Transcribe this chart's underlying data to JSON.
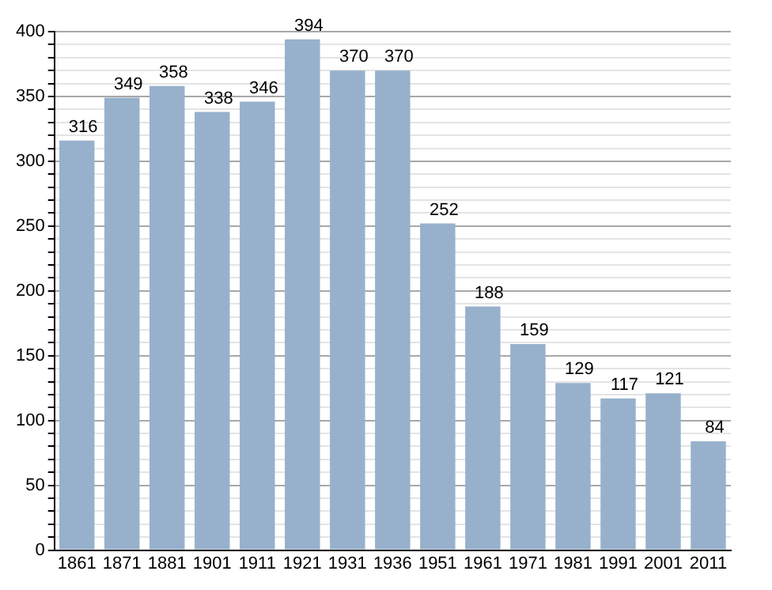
{
  "chart_data": {
    "type": "bar",
    "categories": [
      "1861",
      "1871",
      "1881",
      "1901",
      "1911",
      "1921",
      "1931",
      "1936",
      "1951",
      "1961",
      "1971",
      "1981",
      "1991",
      "2001",
      "2011"
    ],
    "values": [
      316,
      349,
      358,
      338,
      346,
      394,
      370,
      370,
      252,
      188,
      159,
      129,
      117,
      121,
      84
    ],
    "color": "#97b1cc",
    "data_labels": true,
    "grid": "y",
    "ylim": [
      0,
      400
    ],
    "yticks": [
      0,
      {
        "value": 10,
        "label": null
      },
      {
        "value": 20,
        "label": null
      },
      {
        "value": 30,
        "label": null
      },
      {
        "value": 40,
        "label": null
      },
      50,
      {
        "value": 60,
        "label": null
      },
      {
        "value": 70,
        "label": null
      },
      {
        "value": 80,
        "label": null
      },
      {
        "value": 90,
        "label": null
      },
      100,
      {
        "value": 110,
        "label": null
      },
      {
        "value": 120,
        "label": null
      },
      {
        "value": 130,
        "label": null
      },
      {
        "value": 140,
        "label": null
      },
      150,
      {
        "value": 160,
        "label": null
      },
      {
        "value": 170,
        "label": null
      },
      {
        "value": 180,
        "label": null
      },
      {
        "value": 190,
        "label": null
      },
      200,
      {
        "value": 210,
        "label": null
      },
      {
        "value": 220,
        "label": null
      },
      {
        "value": 230,
        "label": null
      },
      {
        "value": 240,
        "label": null
      },
      250,
      {
        "value": 260,
        "label": null
      },
      {
        "value": 270,
        "label": null
      },
      {
        "value": 280,
        "label": null
      },
      {
        "value": 290,
        "label": null
      },
      300,
      {
        "value": 310,
        "label": null
      },
      {
        "value": 320,
        "label": null
      },
      {
        "value": 330,
        "label": null
      },
      {
        "value": 340,
        "label": null
      },
      350,
      {
        "value": 360,
        "label": null
      },
      {
        "value": 370,
        "label": null
      },
      {
        "value": 380,
        "label": null
      },
      {
        "value": 390,
        "label": null
      },
      400
    ]
  }
}
